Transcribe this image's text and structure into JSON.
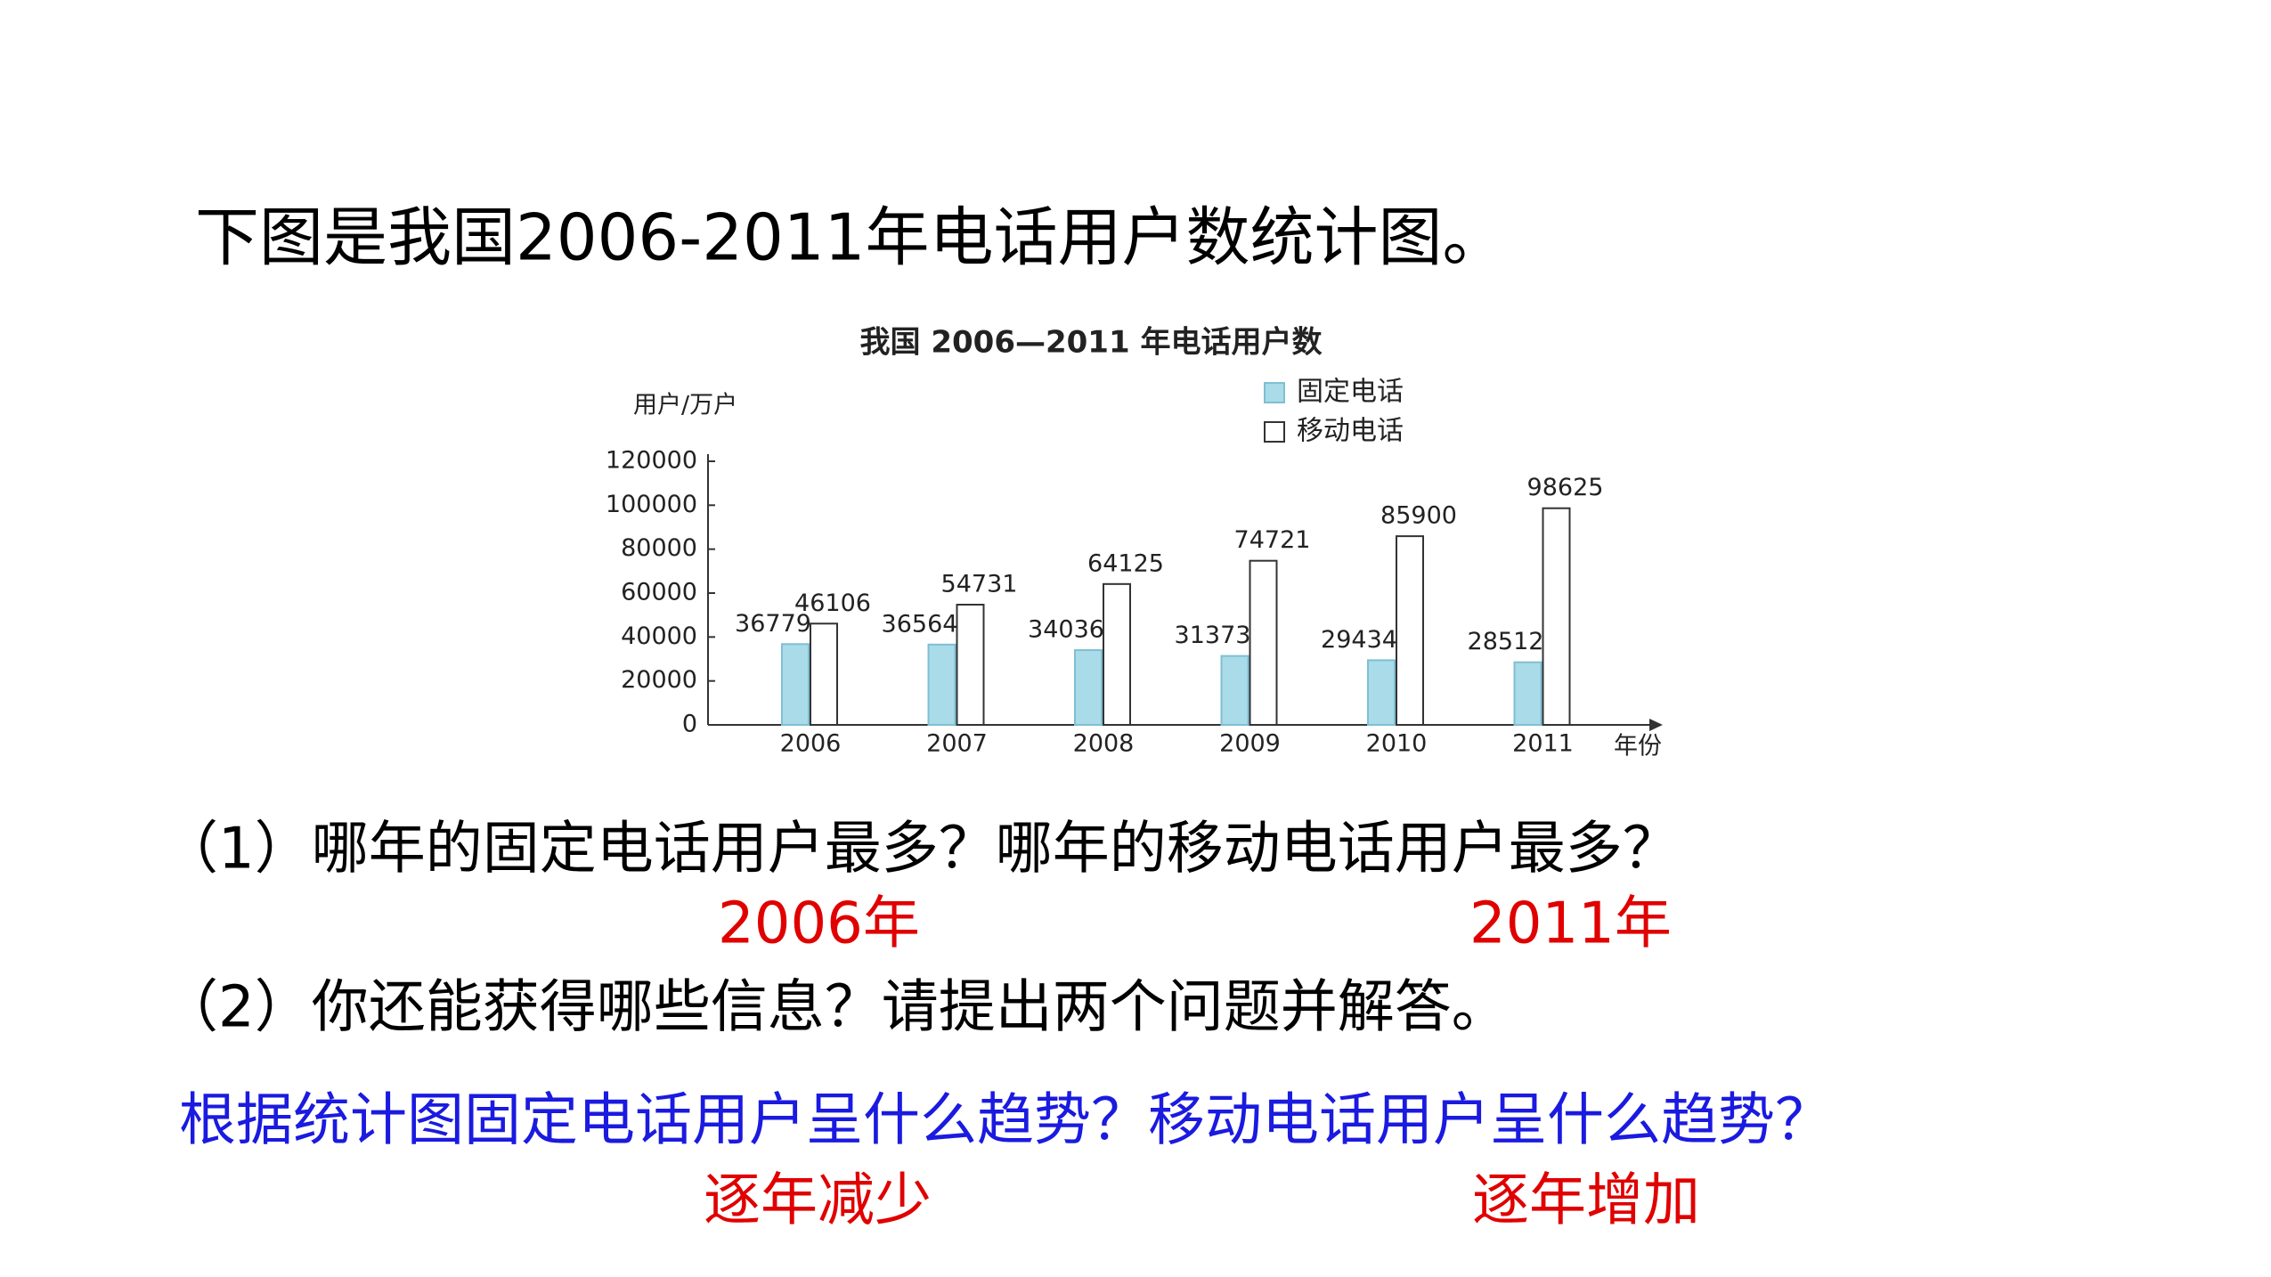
{
  "heading": "下图是我国2006-2011年电话用户数统计图。",
  "chart_data": {
    "type": "bar",
    "title": "我国 2006—2011 年电话用户数",
    "y_label": "用户/万户",
    "x_label": "年份",
    "categories": [
      "2006",
      "2007",
      "2008",
      "2009",
      "2010",
      "2011"
    ],
    "series": [
      {
        "name": "固定电话",
        "color": "#a9dbe9",
        "values": [
          36779,
          36564,
          34036,
          31373,
          29434,
          28512
        ]
      },
      {
        "name": "移动电话",
        "color": "#ffffff",
        "values": [
          46106,
          54731,
          64125,
          74721,
          85900,
          98625
        ]
      }
    ],
    "ylim": [
      0,
      120000
    ],
    "yticks": [
      0,
      20000,
      40000,
      60000,
      80000,
      100000,
      120000
    ],
    "legend": "upper right"
  },
  "questions": [
    {
      "text": "（1）哪年的固定电话用户最多？哪年的移动电话用户最多？",
      "answers": [
        "2006年",
        "2011年"
      ]
    },
    {
      "text": "（2）你还能获得哪些信息？请提出两个问题并解答。",
      "follow_up": "根据统计图固定电话用户呈什么趋势？移动电话用户呈什么趋势？",
      "answers": [
        "逐年减少",
        "逐年增加"
      ]
    }
  ]
}
